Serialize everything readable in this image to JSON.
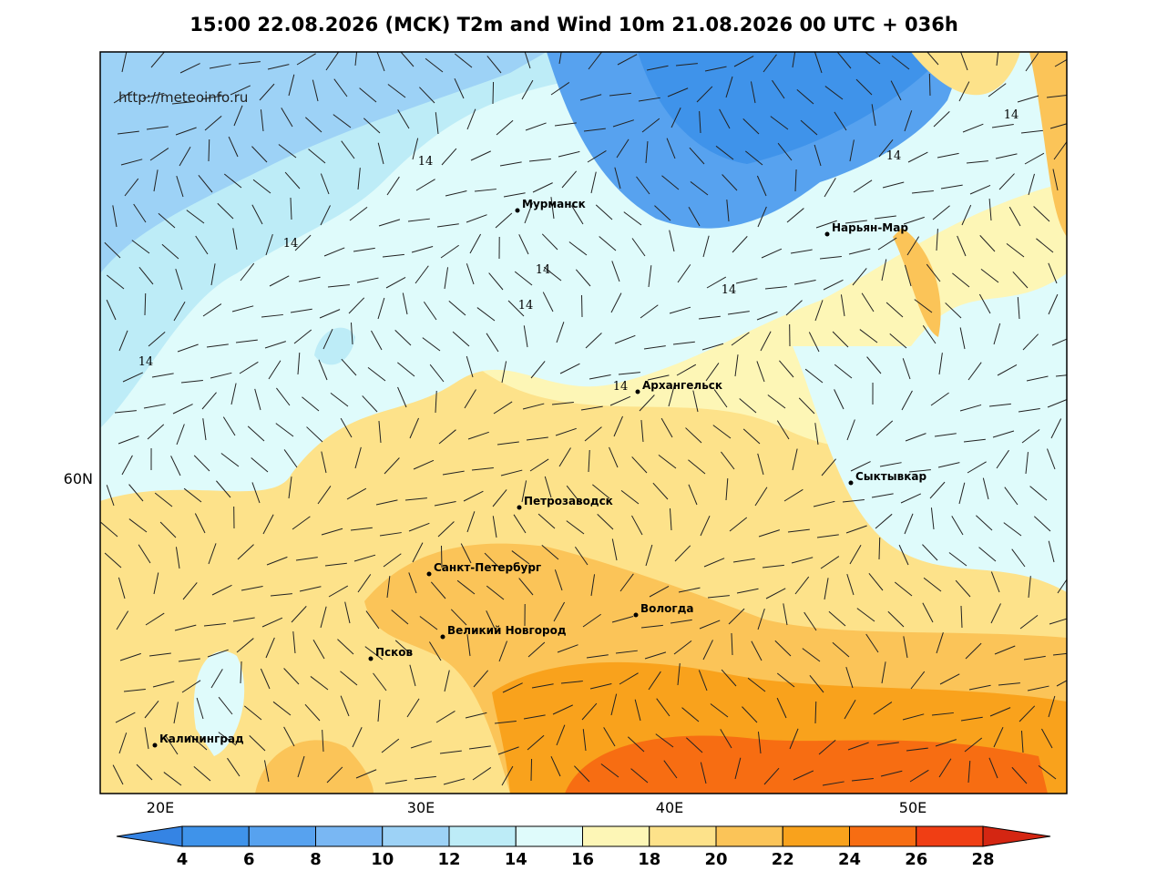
{
  "title": "15:00 22.08.2026 (MCK) T2m and Wind 10m 21.08.2026 00 UTC + 036h",
  "watermark": "http://meteoinfo.ru",
  "map": {
    "cities": [
      "Мурманск",
      "Нарьян-Мар",
      "Архангельск",
      "Сыктывкар",
      "Петрозаводск",
      "Санкт-Петербург",
      "Вологда",
      "Великий Новгород",
      "Псков",
      "Калининград"
    ],
    "contour_labels": [
      14,
      14,
      14,
      14,
      14,
      14,
      14,
      14,
      14
    ],
    "lon_labels": [
      "20E",
      "30E",
      "40E",
      "50E"
    ],
    "lat_labels": [
      "60N"
    ]
  },
  "colorbar": {
    "ticks": [
      4,
      6,
      8,
      10,
      12,
      14,
      16,
      18,
      20,
      22,
      24,
      26,
      28
    ],
    "colors": [
      "#3584e4",
      "#3f93ea",
      "#57a2ef",
      "#79b7f3",
      "#9dd2f6",
      "#bdecf7",
      "#dffbfb",
      "#fdf6b6",
      "#fde28a",
      "#fbc458",
      "#f9a21c",
      "#f76d12",
      "#f03e14",
      "#d42612"
    ]
  }
}
